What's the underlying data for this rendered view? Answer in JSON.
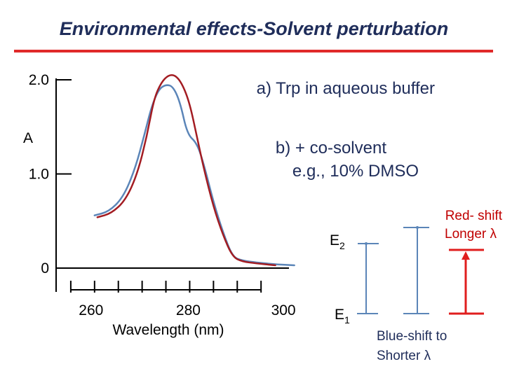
{
  "title": "Environmental effects-Solvent perturbation",
  "colors": {
    "title": "#1f2d5a",
    "rule": "#e02a2a",
    "series_a": "#a31c22",
    "series_b": "#5b85b8",
    "arrow_red": "#e01e1e",
    "level_blue": "#5b85b8"
  },
  "chart_data": {
    "type": "line",
    "xlabel": "Wavelength (nm)",
    "ylabel": "A",
    "xlim": [
      250,
      305
    ],
    "ylim": [
      0,
      2.0
    ],
    "xticks": [
      255,
      260,
      265,
      270,
      275,
      280,
      285,
      290,
      295,
      300
    ],
    "xtick_labels": [
      {
        "value": 260,
        "label": "260"
      },
      {
        "value": 280,
        "label": "280"
      },
      {
        "value": 300,
        "label": "300"
      }
    ],
    "yticks": [
      {
        "value": 2.0,
        "label": "2.0"
      },
      {
        "value": 1.0,
        "label": "1.0"
      },
      {
        "value": 0,
        "label": "0"
      }
    ],
    "series": [
      {
        "name": "a)  Trp in aqueous buffer",
        "color": "#a31c22",
        "points": [
          [
            260.6,
            0.54
          ],
          [
            263.5,
            0.58
          ],
          [
            266.5,
            0.72
          ],
          [
            269,
            1.0
          ],
          [
            271,
            1.4
          ],
          [
            272.5,
            1.8
          ],
          [
            274,
            1.97
          ],
          [
            275.5,
            2.05
          ],
          [
            277,
            2.05
          ],
          [
            278.5,
            1.95
          ],
          [
            280,
            1.75
          ],
          [
            281.5,
            1.4
          ],
          [
            283,
            1.05
          ],
          [
            285,
            0.65
          ],
          [
            287,
            0.35
          ],
          [
            289,
            0.12
          ],
          [
            291,
            0.07
          ],
          [
            294,
            0.05
          ],
          [
            298,
            0.03
          ]
        ]
      },
      {
        "name": "b) + co-solvent e.g., 10% DMSO",
        "color": "#5b85b8",
        "points": [
          [
            260,
            0.56
          ],
          [
            263,
            0.6
          ],
          [
            266,
            0.75
          ],
          [
            268.5,
            1.05
          ],
          [
            270.5,
            1.42
          ],
          [
            272,
            1.72
          ],
          [
            273.5,
            1.9
          ],
          [
            275,
            1.95
          ],
          [
            276.5,
            1.93
          ],
          [
            278,
            1.76
          ],
          [
            279.5,
            1.42
          ],
          [
            281.5,
            1.33
          ],
          [
            283,
            1.1
          ],
          [
            285,
            0.7
          ],
          [
            287,
            0.38
          ],
          [
            289,
            0.12
          ],
          [
            291,
            0.08
          ],
          [
            294,
            0.06
          ],
          [
            298,
            0.04
          ],
          [
            302,
            0.03
          ]
        ]
      }
    ],
    "annotations": {
      "series_a": "a)  Trp in aqueous buffer",
      "series_b_line1": "b) + co-solvent",
      "series_b_line2": "e.g., 10% DMSO"
    }
  },
  "diagram": {
    "e2": "E",
    "e2_sub": "2",
    "e1": "E",
    "e1_sub": "1",
    "red_shift_line1": "Red- shift",
    "red_shift_line2": "Longer λ",
    "blue_shift_line1": "Blue-shift to",
    "blue_shift_line2": "Shorter λ"
  }
}
